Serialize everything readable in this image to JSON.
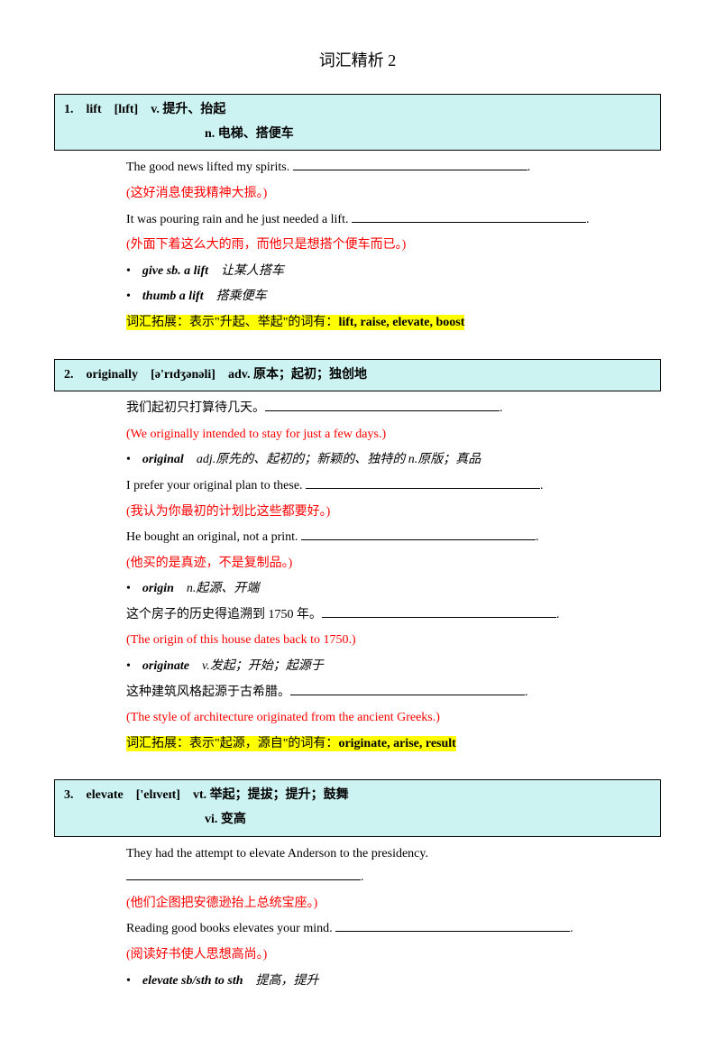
{
  "title": "词汇精析 2",
  "entries": [
    {
      "num": "1.",
      "headword": "lift",
      "phonetic": "[lɪft]",
      "pos1": "v.",
      "def1": "提升、抬起",
      "pos2": "n.",
      "def2": "电梯、搭便车",
      "lines": [
        {
          "type": "ex",
          "text": "The good news lifted my spirits. "
        },
        {
          "type": "red",
          "text": "(这好消息使我精神大振。)"
        },
        {
          "type": "ex",
          "text": "It was pouring rain and he just needed a lift. "
        },
        {
          "type": "red",
          "text": "(外面下着这么大的雨，而他只是想搭个便车而已。)"
        },
        {
          "type": "col",
          "phrase": "give sb. a lift",
          "meaning": "让某人搭车"
        },
        {
          "type": "col",
          "phrase": "thumb a lift",
          "meaning": "搭乘便车"
        },
        {
          "type": "hl",
          "prefix": "词汇拓展：表示\"升起、举起\"的词有：",
          "bold": "lift, raise, elevate, boost"
        }
      ]
    },
    {
      "num": "2.",
      "headword": "originally",
      "phonetic": "[ə'rɪdʒənəli]",
      "pos1": "adv.",
      "def1": "原本；起初；独创地",
      "lines": [
        {
          "type": "exzh",
          "text": "我们起初只打算待几天。"
        },
        {
          "type": "red",
          "text": "(We originally intended to stay for just a few days.)"
        },
        {
          "type": "col",
          "phrase": "original",
          "meaning": "adj.原先的、起初的；新颖的、独特的    n.原版；真品"
        },
        {
          "type": "ex",
          "text": "I prefer your original plan to these. "
        },
        {
          "type": "red",
          "text": "(我认为你最初的计划比这些都要好。)"
        },
        {
          "type": "ex",
          "text": "He bought an original, not a print. "
        },
        {
          "type": "red",
          "text": "(他买的是真迹，不是复制品。)"
        },
        {
          "type": "col",
          "phrase": "origin",
          "meaning": "n.起源、开端"
        },
        {
          "type": "exzh",
          "text": "这个房子的历史得追溯到 1750 年。"
        },
        {
          "type": "red",
          "text": "(The origin of this house dates back to 1750.)"
        },
        {
          "type": "col",
          "phrase": "originate",
          "meaning": "v.发起；开始；起源于"
        },
        {
          "type": "exzh",
          "text": "这种建筑风格起源于古希腊。"
        },
        {
          "type": "red",
          "text": "(The style of architecture originated from the ancient Greeks.)"
        },
        {
          "type": "hl",
          "prefix": "词汇拓展：表示\"起源，源自\"的词有：",
          "bold": "originate, arise, result"
        }
      ]
    },
    {
      "num": "3.",
      "headword": "elevate",
      "phonetic": "['elɪveɪt]",
      "pos1": "vt.",
      "def1": "举起；提拔；提升；鼓舞",
      "pos2": "vi.",
      "def2": "变高",
      "lines": [
        {
          "type": "ex",
          "text": "They had the attempt to elevate Anderson to the presidency."
        },
        {
          "type": "red",
          "text": "(他们企图把安德逊抬上总统宝座。)"
        },
        {
          "type": "ex",
          "text": "Reading good books elevates your mind. "
        },
        {
          "type": "red",
          "text": "(阅读好书使人思想高尚。)"
        },
        {
          "type": "col",
          "phrase": "elevate sb/sth to sth",
          "meaning": "提高，提升"
        }
      ]
    }
  ]
}
